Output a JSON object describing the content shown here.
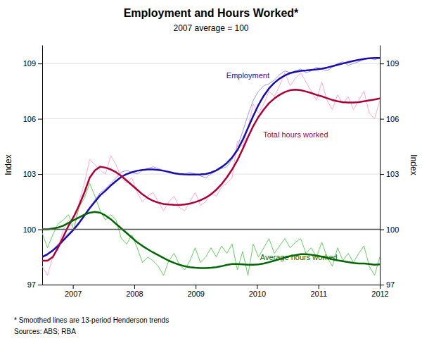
{
  "chart_data": {
    "type": "line",
    "title": "Employment and Hours Worked*",
    "subtitle": "2007 average = 100",
    "ylabel": "Index",
    "y2label": "Index",
    "footnote": "*   Smoothed lines are 13-period Henderson trends",
    "source": "Sources: ABS; RBA",
    "xlim": [
      2006.5,
      2012.0
    ],
    "xticks": [
      2007,
      2008,
      2009,
      2010,
      2011,
      2012
    ],
    "ylim": [
      97,
      110
    ],
    "yticks": [
      97,
      100,
      103,
      106,
      109
    ],
    "y2lim": [
      97,
      110
    ],
    "y2ticks": [
      97,
      100,
      103,
      106,
      109
    ],
    "grid": true,
    "hline": 100,
    "x": [
      2006.5,
      2006.5859375,
      2006.671875,
      2006.7578125,
      2006.84375,
      2006.9296875,
      2007.015625,
      2007.1015625,
      2007.1875,
      2007.2734375,
      2007.359375,
      2007.4453125,
      2007.53125,
      2007.6171875,
      2007.703125,
      2007.7890625,
      2007.875,
      2007.9609375,
      2008.046875,
      2008.1328125,
      2008.21875,
      2008.3046875,
      2008.390625,
      2008.4765625,
      2008.5625,
      2008.6484375,
      2008.734375,
      2008.8203125,
      2008.90625,
      2008.9921875,
      2009.078125,
      2009.1640625,
      2009.25,
      2009.3359375,
      2009.421875,
      2009.5078125,
      2009.59375,
      2009.6796875,
      2009.765625,
      2009.8515625,
      2009.9375,
      2010.0234375,
      2010.109375,
      2010.1953125,
      2010.28125,
      2010.3671875,
      2010.453125,
      2010.5390625,
      2010.625,
      2010.7109375,
      2010.796875,
      2010.8828125,
      2010.96875,
      2011.0546875,
      2011.140625,
      2011.2265625,
      2011.3125,
      2011.3984375,
      2011.484375,
      2011.5703125,
      2011.65625,
      2011.7421875,
      2011.828125,
      2011.9140625,
      2012.0
    ],
    "series": [
      {
        "color": "#9999dd",
        "line_style": "thin",
        "values": [
          98.5,
          98.6,
          98.9,
          99.2,
          99.5,
          99.8,
          100.0,
          100.4,
          100.8,
          101.2,
          101.6,
          102.0,
          102.2,
          102.5,
          102.8,
          103.1,
          103.2,
          103.1,
          103.0,
          103.2,
          103.3,
          103.4,
          103.3,
          103.2,
          103.1,
          103.0,
          103.0,
          103.0,
          103.1,
          103.0,
          102.9,
          102.8,
          103.0,
          103.2,
          103.3,
          103.4,
          103.8,
          104.5,
          105.3,
          106.2,
          107.0,
          107.5,
          107.8,
          107.9,
          108.1,
          108.4,
          108.6,
          108.5,
          108.6,
          108.7,
          108.5,
          108.6,
          108.8,
          108.7,
          108.6,
          108.8,
          109.0,
          109.1,
          108.9,
          109.0,
          109.1,
          109.2,
          109.3,
          109.2,
          109.3
        ]
      },
      {
        "color": "#ffaacc",
        "line_style": "thin",
        "values": [
          98.0,
          97.5,
          98.5,
          99.0,
          100.0,
          100.5,
          100.0,
          101.5,
          102.5,
          103.8,
          103.5,
          103.2,
          103.0,
          104.0,
          103.5,
          102.8,
          102.5,
          102.8,
          102.0,
          101.5,
          101.8,
          102.0,
          101.5,
          101.0,
          101.5,
          101.8,
          101.2,
          101.0,
          101.5,
          102.0,
          101.3,
          101.5,
          102.0,
          101.8,
          102.3,
          102.5,
          102.8,
          104.8,
          104.5,
          105.5,
          106.8,
          106.3,
          106.8,
          107.5,
          107.2,
          107.8,
          108.5,
          107.8,
          108.2,
          108.5,
          108.0,
          107.5,
          107.0,
          108.0,
          107.0,
          106.5,
          107.3,
          106.8,
          107.2,
          106.5,
          107.0,
          107.5,
          106.3,
          106.0,
          107.0
        ]
      },
      {
        "color": "#66cc66",
        "line_style": "thin",
        "values": [
          99.8,
          99.0,
          99.7,
          100.3,
          100.5,
          100.8,
          100.0,
          101.2,
          101.7,
          102.5,
          101.8,
          101.0,
          100.5,
          100.8,
          100.5,
          99.5,
          99.2,
          99.7,
          99.0,
          98.2,
          98.5,
          98.3,
          98.0,
          97.5,
          98.3,
          98.7,
          98.1,
          97.8,
          98.3,
          99.0,
          98.2,
          98.5,
          99.0,
          98.5,
          99.1,
          98.7,
          99.2,
          97.8,
          98.8,
          97.5,
          99.2,
          98.5,
          99.0,
          99.5,
          98.7,
          99.1,
          99.5,
          99.0,
          99.3,
          99.5,
          98.7,
          99.0,
          98.5,
          99.3,
          98.5,
          98.0,
          99.0,
          98.3,
          98.7,
          98.2,
          98.7,
          99.1,
          98.0,
          97.5,
          98.5
        ]
      },
      {
        "color": "#1a0dab",
        "line_style": "thick",
        "values": [
          98.5,
          98.65,
          98.85,
          99.1,
          99.4,
          99.7,
          100.0,
          100.35,
          100.75,
          101.15,
          101.5,
          101.85,
          102.1,
          102.38,
          102.62,
          102.85,
          103.0,
          103.1,
          103.18,
          103.22,
          103.25,
          103.25,
          103.22,
          103.18,
          103.12,
          103.05,
          103.0,
          102.98,
          102.97,
          102.97,
          102.98,
          103.0,
          103.08,
          103.2,
          103.38,
          103.6,
          103.9,
          104.3,
          104.85,
          105.5,
          106.15,
          106.75,
          107.25,
          107.65,
          107.95,
          108.18,
          108.35,
          108.48,
          108.55,
          108.6,
          108.62,
          108.65,
          108.68,
          108.72,
          108.78,
          108.85,
          108.93,
          109.0,
          109.07,
          109.14,
          109.2,
          109.25,
          109.28,
          109.3,
          109.3
        ]
      },
      {
        "color": "#aa003a",
        "line_style": "thick",
        "values": [
          98.3,
          98.3,
          98.5,
          99.0,
          99.6,
          100.2,
          100.7,
          101.3,
          102.0,
          102.8,
          103.2,
          103.4,
          103.35,
          103.25,
          103.1,
          102.9,
          102.65,
          102.4,
          102.15,
          101.9,
          101.7,
          101.55,
          101.45,
          101.38,
          101.35,
          101.33,
          101.32,
          101.35,
          101.4,
          101.48,
          101.58,
          101.72,
          101.9,
          102.15,
          102.45,
          102.82,
          103.25,
          103.75,
          104.35,
          105.0,
          105.6,
          106.1,
          106.5,
          106.85,
          107.1,
          107.3,
          107.45,
          107.55,
          107.58,
          107.55,
          107.48,
          107.4,
          107.3,
          107.22,
          107.12,
          107.02,
          106.95,
          106.9,
          106.88,
          106.88,
          106.9,
          106.95,
          107.0,
          107.05,
          107.1
        ]
      },
      {
        "color": "#006600",
        "line_style": "thick",
        "values": [
          100.0,
          100.0,
          100.05,
          100.1,
          100.2,
          100.35,
          100.5,
          100.65,
          100.8,
          100.9,
          100.95,
          100.9,
          100.75,
          100.55,
          100.3,
          100.05,
          99.8,
          99.55,
          99.3,
          99.1,
          98.92,
          98.75,
          98.6,
          98.45,
          98.3,
          98.18,
          98.08,
          98.0,
          97.95,
          97.92,
          97.9,
          97.9,
          97.92,
          97.95,
          98.0,
          98.07,
          98.12,
          98.12,
          98.1,
          98.08,
          98.08,
          98.1,
          98.15,
          98.22,
          98.3,
          98.38,
          98.47,
          98.55,
          98.6,
          98.65,
          98.65,
          98.62,
          98.58,
          98.52,
          98.45,
          98.38,
          98.32,
          98.27,
          98.22,
          98.18,
          98.15,
          98.15,
          98.12,
          98.08,
          98.1
        ]
      }
    ],
    "annotations": [
      {
        "text": "Employment",
        "x": 2009.5,
        "y": 108.2,
        "color": "#1a0dab"
      },
      {
        "text": "Total hours worked",
        "x": 2010.1,
        "y": 105.0,
        "color": "#aa003a"
      },
      {
        "text": "Average hours worked",
        "x": 2010.05,
        "y": 98.35,
        "color": "#006600"
      }
    ]
  }
}
